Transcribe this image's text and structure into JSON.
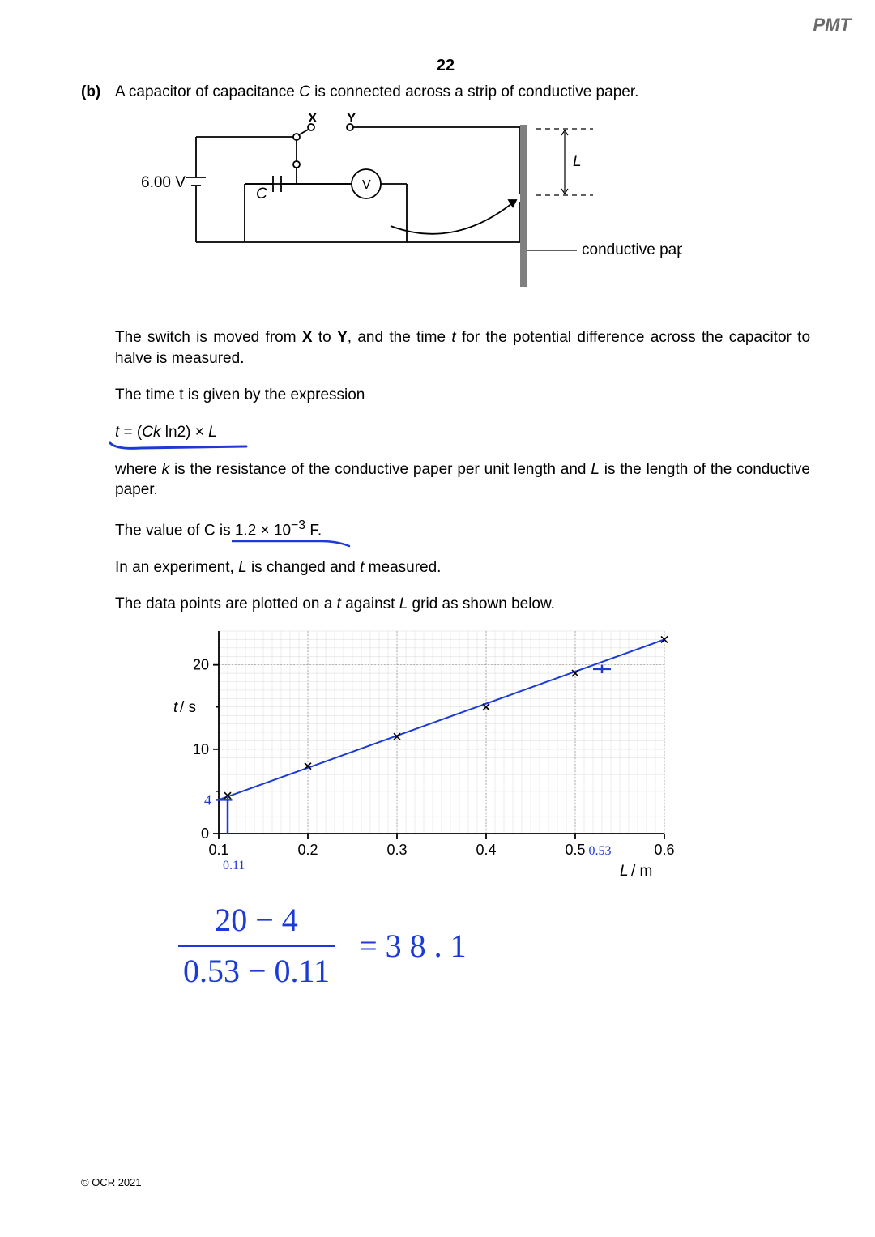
{
  "watermark": "PMT",
  "page_number": "22",
  "question_label": "(b)",
  "intro_text": "A capacitor of capacitance C is connected across a strip of conductive paper.",
  "circuit": {
    "voltage": "6.00 V",
    "switch_left": "X",
    "switch_right": "Y",
    "capacitor_label": "C",
    "voltmeter_label": "V",
    "length_label": "L",
    "paper_label": "conductive paper",
    "line_width": 1.5,
    "stroke": "#000000",
    "paper_color": "#808080"
  },
  "para_switch": "The switch is moved from X to Y, and the time t for the potential difference across the capacitor to halve is measured.",
  "para_expr_intro": "The time t is given by the expression",
  "equation": "t = (Ck ln2) × L",
  "para_where": "where k is the resistance of the conductive paper per unit length and L is the length of the conductive paper.",
  "para_cvalue_pre": "The value of C is ",
  "c_value": "1.2 × 10⁻³ F.",
  "para_experiment": "In an experiment, L is changed and t measured.",
  "para_plot": "The data points are plotted on a t against L grid as shown below.",
  "chart": {
    "type": "scatter_with_line",
    "xlabel": "L / m",
    "ylabel": "t / s",
    "xlim": [
      0.1,
      0.6
    ],
    "ylim": [
      0,
      24
    ],
    "xticks": [
      0.1,
      0.2,
      0.3,
      0.4,
      0.5,
      0.6
    ],
    "yticks_major": [
      0,
      10,
      20
    ],
    "yticks_labeled": [
      0,
      10,
      20
    ],
    "minor_x_step": 0.01,
    "minor_y_step": 1,
    "grid_minor_color": "#d9d9d9",
    "grid_major_color": "#909090",
    "axis_color": "#000000",
    "tick_fontsize": 18,
    "label_fontsize": 19,
    "points": [
      {
        "x": 0.11,
        "y": 4.5
      },
      {
        "x": 0.2,
        "y": 8.0
      },
      {
        "x": 0.3,
        "y": 11.5
      },
      {
        "x": 0.4,
        "y": 15.0
      },
      {
        "x": 0.5,
        "y": 19.0
      },
      {
        "x": 0.6,
        "y": 23.0
      }
    ],
    "marker": "x",
    "marker_color": "#000000",
    "marker_size": 8,
    "fit_line": {
      "x1": 0.1,
      "y1": 4.0,
      "x2": 0.6,
      "y2": 23.0,
      "color": "#1c3bd6",
      "width": 2
    },
    "annotations": {
      "y_intercept_mark": {
        "value": "4",
        "color": "#1c3bd6"
      },
      "x_low": {
        "value": "0.11",
        "color": "#1c3bd6"
      },
      "x_high": {
        "value": "0.53",
        "color": "#1c3bd6"
      },
      "tick_mark_x": 0.53
    }
  },
  "handwritten": {
    "frac_top": "20 − 4",
    "frac_bottom": "0.53 − 0.11",
    "equals": "= 3 8 . 1",
    "color": "#1c3bd6",
    "fontsize": 40
  },
  "copyright": "© OCR 2021"
}
